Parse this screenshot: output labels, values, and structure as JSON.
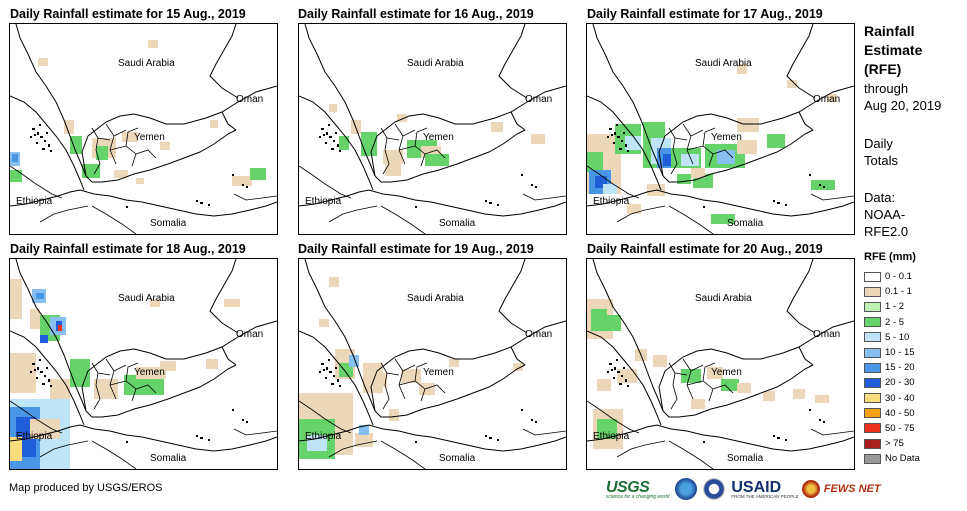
{
  "panels": [
    {
      "title": "Daily Rainfall estimate for 15 Aug., 2019"
    },
    {
      "title": "Daily Rainfall estimate for 16 Aug., 2019"
    },
    {
      "title": "Daily Rainfall estimate for 17 Aug., 2019"
    },
    {
      "title": "Daily Rainfall estimate for 18 Aug., 2019"
    },
    {
      "title": "Daily Rainfall estimate for 19 Aug., 2019"
    },
    {
      "title": "Daily Rainfall estimate for 20 Aug., 2019"
    }
  ],
  "map_labels": {
    "saudi": "Saudi Arabia",
    "oman": "Oman",
    "yemen": "Yemen",
    "ethiopia": "Ethiopia",
    "somalia": "Somalia"
  },
  "side": {
    "title_line1": "Rainfall",
    "title_line2": "Estimate",
    "title_line3": "(RFE)",
    "through": "through",
    "date": "Aug 20, 2019",
    "daily1": "Daily",
    "daily2": "Totals",
    "data1": "Data:",
    "data2": "NOAA-",
    "data3": "RFE2.0"
  },
  "legend": {
    "title": "RFE (mm)",
    "items": [
      {
        "label": "0 - 0.1",
        "color": "#ffffff"
      },
      {
        "label": "0.1 - 1",
        "color": "#ecd8b8"
      },
      {
        "label": "1 - 2",
        "color": "#bff0b4"
      },
      {
        "label": "2 - 5",
        "color": "#66d36a"
      },
      {
        "label": "5 - 10",
        "color": "#bfe4f8"
      },
      {
        "label": "10 - 15",
        "color": "#86bff0"
      },
      {
        "label": "15 - 20",
        "color": "#4a96e6"
      },
      {
        "label": "20 - 30",
        "color": "#1f5ed8"
      },
      {
        "label": "30 - 40",
        "color": "#f8de7e"
      },
      {
        "label": "40 - 50",
        "color": "#f4a218"
      },
      {
        "label": "50 - 75",
        "color": "#e8321c"
      },
      {
        "label": "> 75",
        "color": "#a82020"
      },
      {
        "label": "No Data",
        "color": "#9a9a9a"
      }
    ]
  },
  "footer": "Map produced by USGS/EROS",
  "logos": {
    "usgs": "USGS",
    "usgs_tag": "science for a changing world",
    "usaid": "USAID",
    "usaid_tag": "FROM THE AMERICAN PEOPLE",
    "fews": "FEWS NET"
  }
}
